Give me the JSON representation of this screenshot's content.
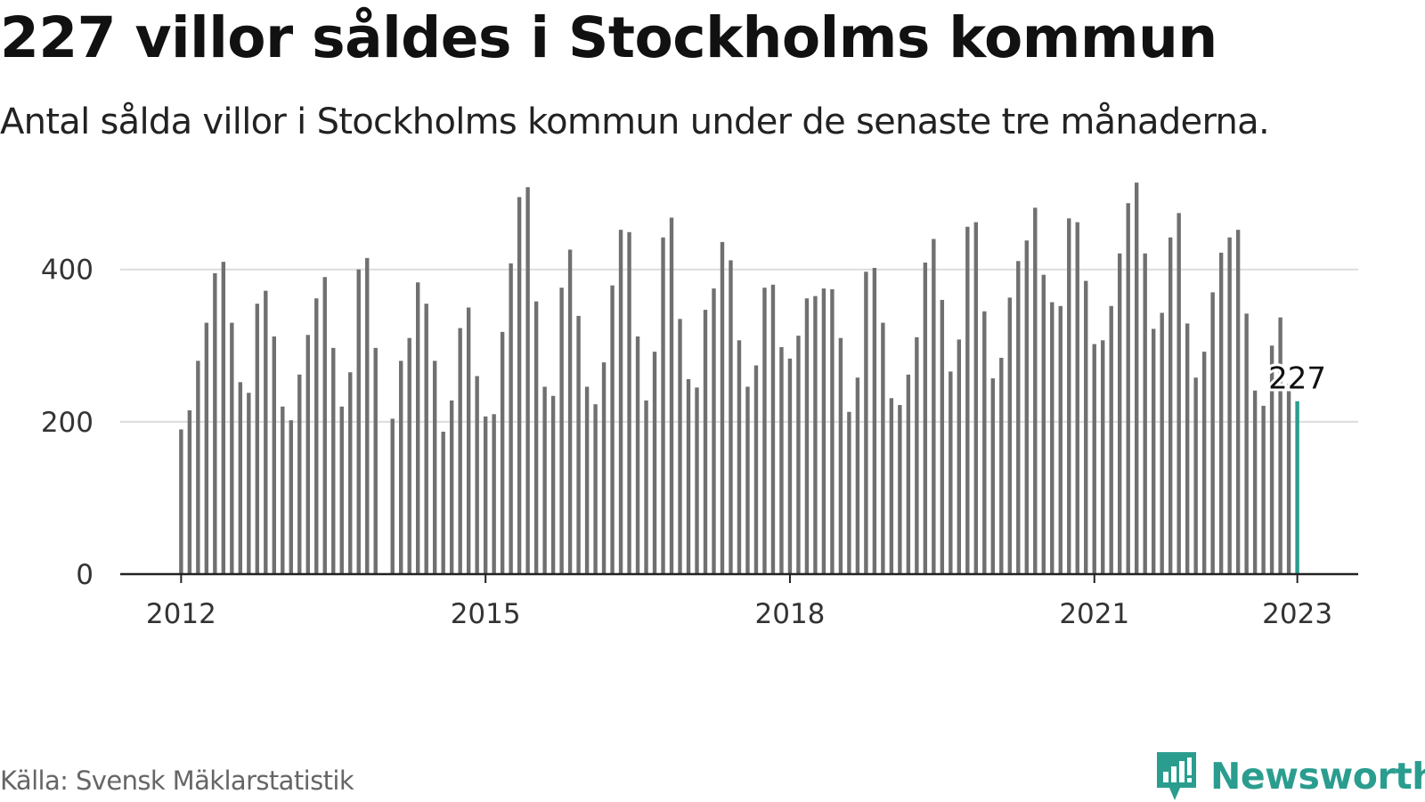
{
  "title": "227 villor såldes i Stockholms kommun",
  "subtitle": "Antal sålda villor i Stockholms kommun under de senaste tre månaderna.",
  "source": "Källa: Svensk Mäklarstatistik",
  "brand": {
    "name": "Newsworthy",
    "icon": "newsworthy-chart-bubble-icon",
    "color": "#2a9d8f"
  },
  "chart_data": {
    "type": "bar",
    "title": "227 villor såldes i Stockholms kommun",
    "subtitle": "Antal sålda villor i Stockholms kommun under de senaste tre månaderna.",
    "xlabel": "",
    "ylabel": "",
    "ylim": [
      0,
      520
    ],
    "xlim": [
      2011.4,
      2023.6
    ],
    "yticks": [
      0,
      200,
      400
    ],
    "xticks": [
      2012,
      2015,
      2018,
      2021,
      2023
    ],
    "grid": "horizontal",
    "bar_color": "#707070",
    "highlight_color": "#2a9d8f",
    "x_start": 2012,
    "x_step": 0.08333,
    "values": [
      190,
      215,
      280,
      330,
      395,
      410,
      330,
      252,
      238,
      355,
      372,
      312,
      220,
      202,
      262,
      314,
      362,
      390,
      297,
      220,
      265,
      400,
      415,
      297,
      null,
      204,
      280,
      310,
      383,
      355,
      280,
      187,
      228,
      323,
      350,
      260,
      207,
      210,
      318,
      408,
      495,
      508,
      358,
      246,
      234,
      376,
      426,
      339,
      246,
      223,
      278,
      379,
      452,
      449,
      312,
      228,
      292,
      442,
      468,
      335,
      256,
      245,
      347,
      375,
      436,
      412,
      307,
      246,
      274,
      376,
      380,
      298,
      283,
      313,
      362,
      365,
      375,
      374,
      310,
      213,
      258,
      397,
      402,
      330,
      231,
      222,
      262,
      311,
      409,
      440,
      360,
      266,
      308,
      456,
      462,
      345,
      257,
      284,
      363,
      411,
      438,
      481,
      393,
      357,
      352,
      467,
      462,
      385,
      302,
      307,
      352,
      421,
      487,
      514,
      421,
      322,
      343,
      442,
      474,
      329,
      258,
      292,
      370,
      422,
      442,
      452,
      342,
      241,
      221,
      300,
      337,
      250,
      227
    ],
    "highlight_last": true,
    "annotations": [
      {
        "label": "227",
        "x": 2023.0,
        "y": 227
      }
    ]
  }
}
